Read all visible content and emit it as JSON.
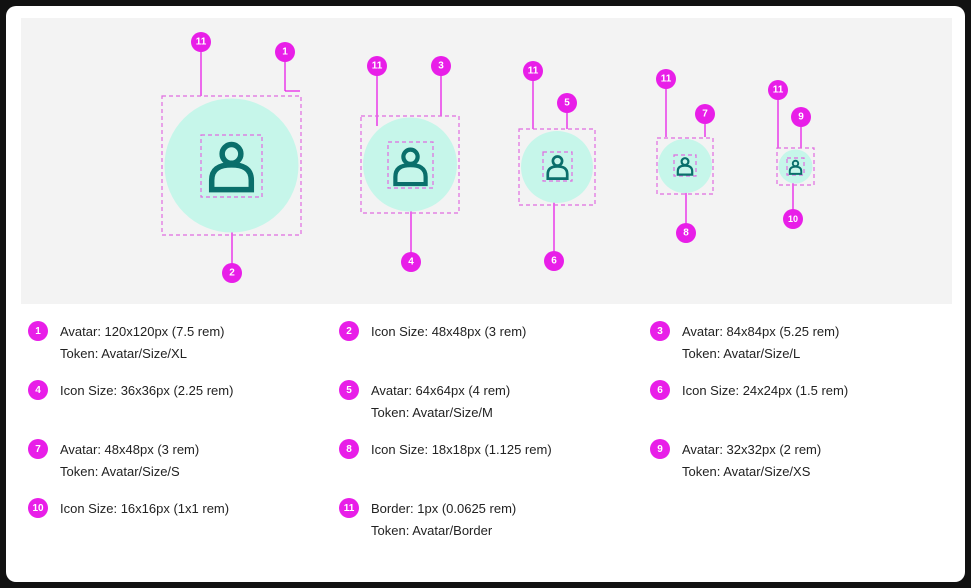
{
  "diagram": {
    "accent_color": "#e81ee8",
    "avatar_fill": "#c6f6ea",
    "icon_color": "#0a6f6b",
    "icon_name": "person-icon",
    "markers": {
      "avatar_xl": "1",
      "icon_xl": "2",
      "border_xl": "11",
      "avatar_l": "3",
      "icon_l": "4",
      "border_l": "11",
      "avatar_m": "5",
      "icon_m": "6",
      "border_m": "11",
      "avatar_s": "7",
      "icon_s": "8",
      "border_s": "11",
      "avatar_xs": "9",
      "icon_xs": "10",
      "border_xs": "11"
    }
  },
  "legend": [
    {
      "num": "1",
      "line1": "Avatar: 120x120px (7.5 rem)",
      "line2": "Token: Avatar/Size/XL"
    },
    {
      "num": "2",
      "line1": "Icon Size: 48x48px (3 rem)",
      "line2": ""
    },
    {
      "num": "3",
      "line1": "Avatar: 84x84px (5.25 rem)",
      "line2": "Token: Avatar/Size/L"
    },
    {
      "num": "4",
      "line1": "Icon Size: 36x36px (2.25 rem)",
      "line2": ""
    },
    {
      "num": "5",
      "line1": "Avatar: 64x64px (4 rem)",
      "line2": "Token: Avatar/Size/M"
    },
    {
      "num": "6",
      "line1": "Icon Size: 24x24px (1.5 rem)",
      "line2": ""
    },
    {
      "num": "7",
      "line1": "Avatar: 48x48px (3 rem)",
      "line2": "Token: Avatar/Size/S"
    },
    {
      "num": "8",
      "line1": "Icon Size: 18x18px (1.125 rem)",
      "line2": ""
    },
    {
      "num": "9",
      "line1": "Avatar: 32x32px (2 rem)",
      "line2": "Token: Avatar/Size/XS"
    },
    {
      "num": "10",
      "line1": "Icon Size: 16x16px (1x1 rem)",
      "line2": ""
    },
    {
      "num": "11",
      "line1": "Border: 1px (0.0625 rem)",
      "line2": "Token: Avatar/Border"
    }
  ]
}
